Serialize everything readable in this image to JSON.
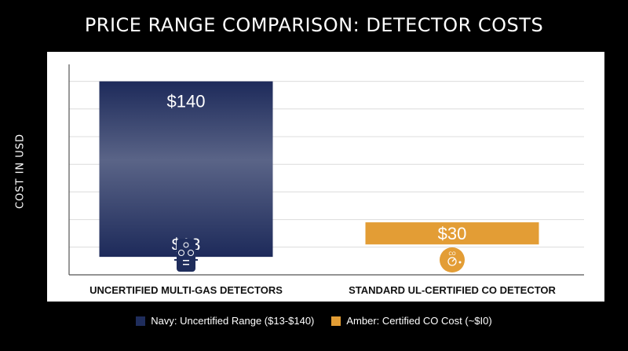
{
  "chart_data": {
    "type": "bar",
    "subtype": "floating-range",
    "title": "PRICE RANGE COMPARISON: DETECTOR COSTS",
    "ylabel": "COST IN USD",
    "xlabel": "",
    "ylim": [
      0,
      150
    ],
    "grid": true,
    "legend_position": "bottom",
    "categories": [
      "UNCERTIFIED MULTI-GAS DETECTORS",
      "STANDARD UL-CERTIFIED CO DETECTOR"
    ],
    "series": [
      {
        "name": "Navy: Uncertified Range ($13-$140)",
        "color": "#1f2d5c",
        "low": 13,
        "high": 140,
        "top_label": "$140",
        "bottom_label": "$13",
        "icon": "multi-gas-detector-icon"
      },
      {
        "name": "Amber: Certified CO Cost (~$I0)",
        "color": "#e39d35",
        "low": 22,
        "high": 38,
        "value": 30,
        "label": "$30",
        "icon": "co-detector-icon"
      }
    ],
    "icon_labels": {
      "co": "CO"
    }
  }
}
